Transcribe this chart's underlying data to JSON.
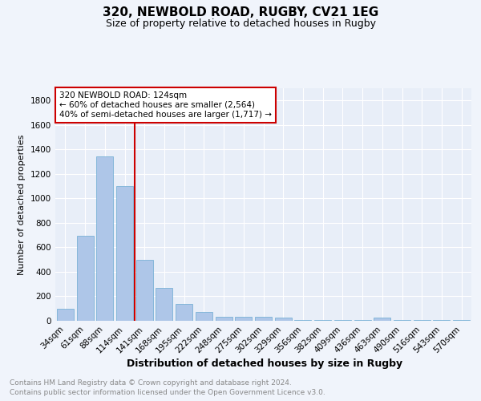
{
  "title": "320, NEWBOLD ROAD, RUGBY, CV21 1EG",
  "subtitle": "Size of property relative to detached houses in Rugby",
  "xlabel": "Distribution of detached houses by size in Rugby",
  "ylabel": "Number of detached properties",
  "categories": [
    "34sqm",
    "61sqm",
    "88sqm",
    "114sqm",
    "141sqm",
    "168sqm",
    "195sqm",
    "222sqm",
    "248sqm",
    "275sqm",
    "302sqm",
    "329sqm",
    "356sqm",
    "382sqm",
    "409sqm",
    "436sqm",
    "463sqm",
    "490sqm",
    "516sqm",
    "543sqm",
    "570sqm"
  ],
  "values": [
    100,
    695,
    1340,
    1100,
    495,
    270,
    135,
    75,
    30,
    30,
    30,
    25,
    5,
    5,
    5,
    5,
    25,
    5,
    5,
    5,
    5
  ],
  "bar_color": "#aec6e8",
  "bar_edge_color": "#6aabd2",
  "vline_x": 3.5,
  "annotation_line1": "320 NEWBOLD ROAD: 124sqm",
  "annotation_line2": "← 60% of detached houses are smaller (2,564)",
  "annotation_line3": "40% of semi-detached houses are larger (1,717) →",
  "annotation_box_color": "#ffffff",
  "annotation_box_edge_color": "#cc0000",
  "ylim": [
    0,
    1900
  ],
  "yticks": [
    0,
    200,
    400,
    600,
    800,
    1000,
    1200,
    1400,
    1600,
    1800
  ],
  "bg_color": "#f0f4fb",
  "plot_bg_color": "#e8eef8",
  "footer_line1": "Contains HM Land Registry data © Crown copyright and database right 2024.",
  "footer_line2": "Contains public sector information licensed under the Open Government Licence v3.0.",
  "title_fontsize": 11,
  "subtitle_fontsize": 9,
  "xlabel_fontsize": 9,
  "ylabel_fontsize": 8,
  "tick_fontsize": 7.5,
  "footer_fontsize": 6.5,
  "grid_color": "#ffffff",
  "vline_color": "#cc0000"
}
